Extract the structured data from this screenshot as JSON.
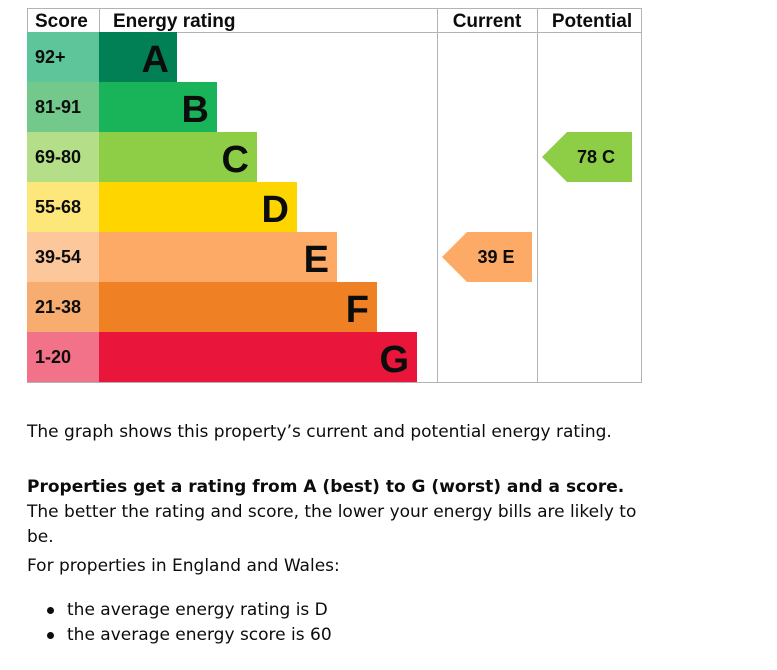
{
  "chart_data": {
    "type": "table",
    "headers": {
      "score": "Score",
      "rating": "Energy rating",
      "current": "Current",
      "potential": "Potential"
    },
    "bands": [
      {
        "score": "92+",
        "letter": "A",
        "band_color": "#008054",
        "score_color": "#5ec499",
        "length": 1
      },
      {
        "score": "81-91",
        "letter": "B",
        "band_color": "#19b459",
        "score_color": "#73c88c",
        "length": 2
      },
      {
        "score": "69-80",
        "letter": "C",
        "band_color": "#8dce46",
        "score_color": "#b4de87",
        "length": 3
      },
      {
        "score": "55-68",
        "letter": "D",
        "band_color": "#ffd500",
        "score_color": "#fde67a",
        "length": 4
      },
      {
        "score": "39-54",
        "letter": "E",
        "band_color": "#fcaa65",
        "score_color": "#fdc79c",
        "length": 5
      },
      {
        "score": "21-38",
        "letter": "F",
        "band_color": "#ef8023",
        "score_color": "#f6ad6f",
        "length": 6
      },
      {
        "score": "1-20",
        "letter": "G",
        "band_color": "#e9153b",
        "score_color": "#f27289",
        "length": 7
      }
    ],
    "current": {
      "score": 39,
      "letter": "E",
      "label": "39  E",
      "color": "#fcaa65"
    },
    "potential": {
      "score": 78,
      "letter": "C",
      "label": "78  C",
      "color": "#8dce46"
    }
  },
  "explanation": {
    "intro": "The graph shows this property’s current and potential energy rating.",
    "properties_bold": "Properties get a rating from A (best) to G (worst) and a score.",
    "properties_rest": " The better the rating and score, the lower your energy bills are likely to be.",
    "region": "For properties in England and Wales:",
    "averages": [
      "the average energy rating is D",
      "the average energy score is 60"
    ]
  }
}
